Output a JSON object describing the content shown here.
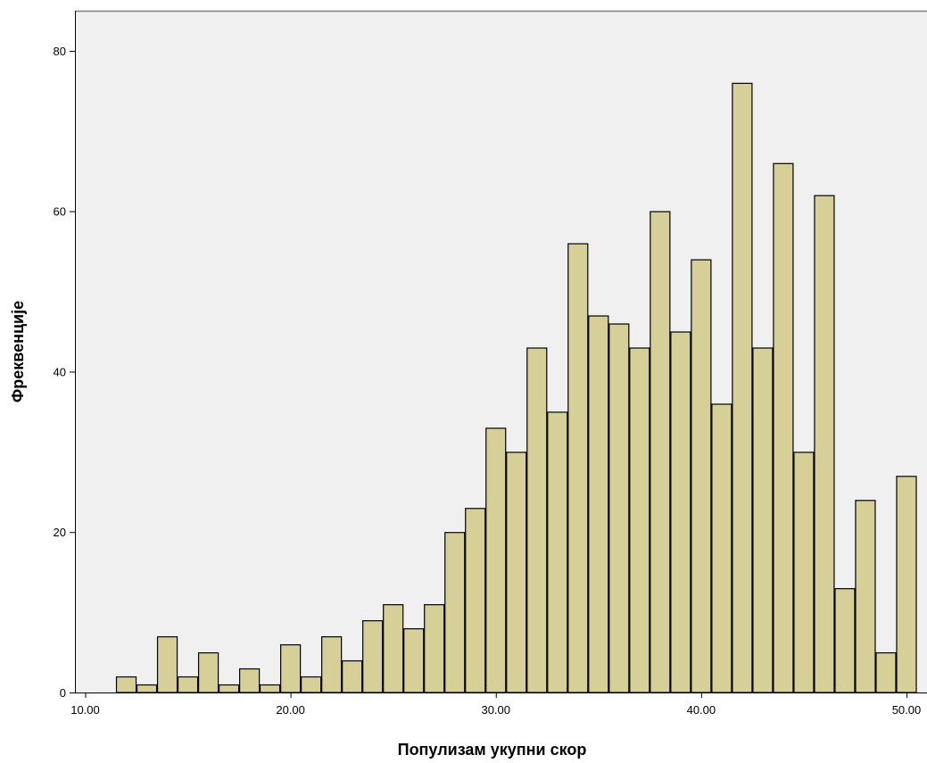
{
  "colors": {
    "plot_background": "#f0f0f0",
    "bar_fill": "#d6cf97",
    "bar_stroke": "#000000",
    "axis": "#000000",
    "frame": "#7f7f7f"
  },
  "chart_data": {
    "type": "bar",
    "title": "",
    "xlabel": "Популизам укупни скор",
    "ylabel": "Фреквенције",
    "grid": false,
    "legend": "none",
    "xlim": [
      9.5,
      51
    ],
    "ylim": [
      0,
      85
    ],
    "bin_width": 1,
    "x_ticks": [
      10,
      20,
      30,
      40,
      50
    ],
    "x_tick_labels": [
      "10.00",
      "20.00",
      "30.00",
      "40.00",
      "50.00"
    ],
    "y_ticks": [
      0,
      20,
      40,
      60,
      80
    ],
    "y_tick_labels": [
      "0",
      "20",
      "40",
      "60",
      "80"
    ],
    "bin_start": [
      11.5,
      12.5,
      13.5,
      14.5,
      15.5,
      16.5,
      17.5,
      18.5,
      19.5,
      20.5,
      21.5,
      22.5,
      23.5,
      24.5,
      25.5,
      26.5,
      27.5,
      28.5,
      29.5,
      30.5,
      31.5,
      32.5,
      33.5,
      34.5,
      35.5,
      36.5,
      37.5,
      38.5,
      39.5,
      40.5,
      41.5,
      42.5,
      43.5,
      44.5,
      45.5,
      46.5,
      47.5,
      48.5,
      49.5
    ],
    "values": [
      2,
      1,
      7,
      2,
      5,
      1,
      3,
      1,
      6,
      2,
      7,
      4,
      9,
      11,
      8,
      11,
      20,
      23,
      33,
      30,
      43,
      35,
      56,
      47,
      46,
      43,
      60,
      45,
      54,
      36,
      76,
      43,
      66,
      30,
      62,
      13,
      24,
      5,
      27
    ]
  }
}
